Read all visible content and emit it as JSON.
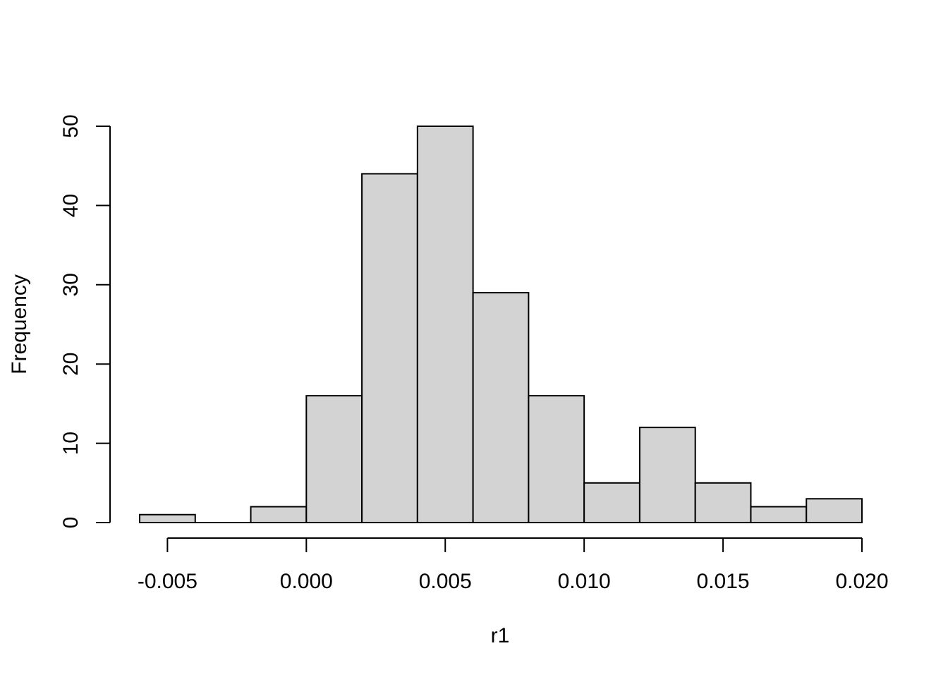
{
  "chart_data": {
    "type": "bar",
    "title": "",
    "xlabel": "r1",
    "ylabel": "Frequency",
    "bins": [
      {
        "x0": -0.006,
        "x1": -0.004,
        "count": 1
      },
      {
        "x0": -0.004,
        "x1": -0.002,
        "count": 0
      },
      {
        "x0": -0.002,
        "x1": 0.0,
        "count": 2
      },
      {
        "x0": 0.0,
        "x1": 0.002,
        "count": 16
      },
      {
        "x0": 0.002,
        "x1": 0.004,
        "count": 44
      },
      {
        "x0": 0.004,
        "x1": 0.006,
        "count": 50
      },
      {
        "x0": 0.006,
        "x1": 0.008,
        "count": 29
      },
      {
        "x0": 0.008,
        "x1": 0.01,
        "count": 16
      },
      {
        "x0": 0.01,
        "x1": 0.012,
        "count": 5
      },
      {
        "x0": 0.012,
        "x1": 0.014,
        "count": 12
      },
      {
        "x0": 0.014,
        "x1": 0.016,
        "count": 5
      },
      {
        "x0": 0.016,
        "x1": 0.018,
        "count": 2
      },
      {
        "x0": 0.018,
        "x1": 0.02,
        "count": 3
      }
    ],
    "x_ticks": [
      -0.005,
      0.0,
      0.005,
      0.01,
      0.015,
      0.02
    ],
    "x_tick_labels": [
      "-0.005",
      "0.000",
      "0.005",
      "0.010",
      "0.015",
      "0.020"
    ],
    "y_ticks": [
      0,
      10,
      20,
      30,
      40,
      50
    ],
    "y_tick_labels": [
      "0",
      "10",
      "20",
      "30",
      "40",
      "50"
    ],
    "xlim": [
      -0.006,
      0.02
    ],
    "ylim": [
      0,
      50
    ],
    "grid": false,
    "bar_color": "#d3d3d3",
    "edge_color": "#000000"
  }
}
